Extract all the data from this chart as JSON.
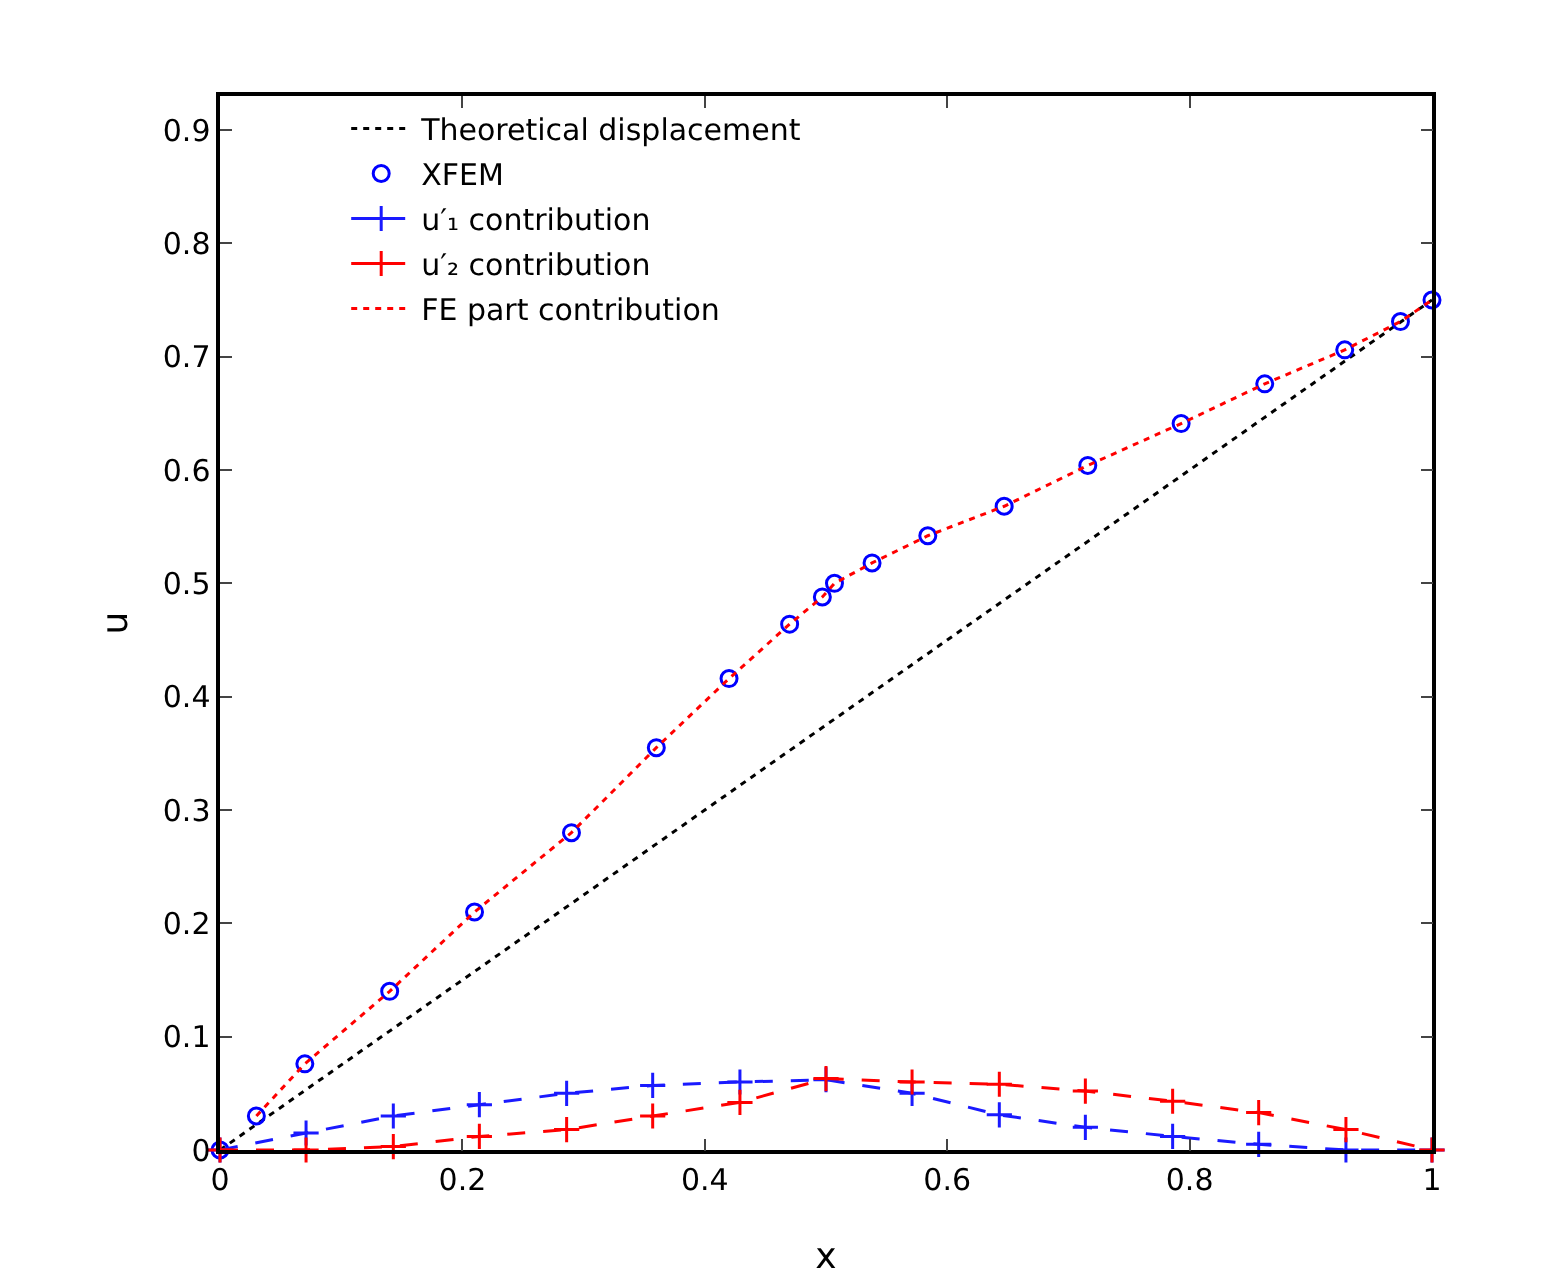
{
  "chart_data": {
    "type": "line",
    "xlabel": "x",
    "ylabel": "u",
    "xlim": [
      0,
      1
    ],
    "ylim": [
      0,
      0.93
    ],
    "xticks": [
      0,
      0.2,
      0.4,
      0.6,
      0.8,
      1
    ],
    "yticks": [
      0,
      0.1,
      0.2,
      0.3,
      0.4,
      0.5,
      0.6,
      0.7,
      0.8,
      0.9
    ],
    "grid": false,
    "legend": "top left",
    "series": [
      {
        "name": "Theoretical displacement",
        "color": "#000000",
        "line_style": "dotted",
        "marker": "none",
        "x": [
          0,
          0.2,
          0.4,
          0.6,
          0.8,
          1
        ],
        "values": [
          0,
          0.15,
          0.3,
          0.45,
          0.6,
          0.75
        ]
      },
      {
        "name": "XFEM",
        "type": "scatter",
        "color": "#0000ff",
        "marker": "circle",
        "x": [
          0,
          0.03,
          0.07,
          0.14,
          0.21,
          0.29,
          0.36,
          0.42,
          0.47,
          0.497,
          0.507,
          0.538,
          0.584,
          0.647,
          0.716,
          0.793,
          0.862,
          0.928,
          0.974,
          1
        ],
        "values": [
          0,
          0.03,
          0.076,
          0.14,
          0.21,
          0.28,
          0.355,
          0.416,
          0.464,
          0.488,
          0.5,
          0.518,
          0.542,
          0.568,
          0.604,
          0.641,
          0.676,
          0.706,
          0.731,
          0.75
        ]
      },
      {
        "name": "u′₁ contribution",
        "color": "#1a1aff",
        "line_style": "dashed",
        "marker": "cross",
        "x": [
          0,
          0.071,
          0.143,
          0.214,
          0.286,
          0.357,
          0.429,
          0.5,
          0.571,
          0.643,
          0.714,
          0.786,
          0.857,
          0.929,
          1
        ],
        "values": [
          0,
          0.015,
          0.03,
          0.04,
          0.05,
          0.057,
          0.06,
          0.062,
          0.05,
          0.031,
          0.02,
          0.012,
          0.005,
          0,
          0
        ]
      },
      {
        "name": "u′₂ contribution",
        "color": "#ff0000",
        "line_style": "dashed",
        "marker": "cross",
        "x": [
          0,
          0.071,
          0.143,
          0.214,
          0.286,
          0.357,
          0.429,
          0.5,
          0.571,
          0.643,
          0.714,
          0.786,
          0.857,
          0.929,
          1
        ],
        "values": [
          0,
          0,
          0.003,
          0.012,
          0.018,
          0.03,
          0.042,
          0.063,
          0.06,
          0.058,
          0.052,
          0.043,
          0.033,
          0.018,
          0
        ]
      },
      {
        "name": "FE part contribution",
        "color": "#ff0000",
        "line_style": "dotted",
        "marker": "none",
        "x": [
          0.03,
          0.07,
          0.14,
          0.21,
          0.29,
          0.36,
          0.42,
          0.47,
          0.497,
          0.507,
          0.538,
          0.584,
          0.647,
          0.716,
          0.793,
          0.862,
          0.928,
          0.974,
          1
        ],
        "values": [
          0.03,
          0.076,
          0.14,
          0.21,
          0.28,
          0.355,
          0.416,
          0.464,
          0.488,
          0.5,
          0.518,
          0.542,
          0.568,
          0.604,
          0.641,
          0.676,
          0.706,
          0.731,
          0.75
        ]
      }
    ]
  }
}
